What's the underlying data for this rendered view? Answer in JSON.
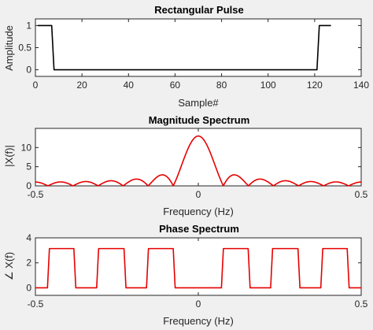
{
  "chart_data": [
    {
      "type": "line",
      "title": "Rectangular Pulse",
      "xlabel": "Sample#",
      "ylabel": "Amplitude",
      "xlim": [
        0,
        140
      ],
      "ylim": [
        -0.15,
        1.15
      ],
      "xticks": [
        "0",
        "20",
        "40",
        "60",
        "80",
        "100",
        "120",
        "140"
      ],
      "yticks": [
        "0",
        "0.5",
        "1"
      ],
      "series": [
        {
          "color": "#000000",
          "x": [
            1,
            7,
            8,
            121,
            122,
            127
          ],
          "y": [
            1,
            1,
            0,
            0,
            1,
            1
          ]
        }
      ]
    },
    {
      "type": "line",
      "title": "Magnitude Spectrum",
      "xlabel": "Frequency (Hz)",
      "ylabel": "|X(f)|",
      "xlim": [
        -0.5,
        0.5
      ],
      "ylim": [
        0,
        15
      ],
      "xticks": [
        "-0.5",
        "0",
        "0.5"
      ],
      "yticks": [
        "0",
        "5",
        "10"
      ],
      "series": [
        {
          "color": "#e60000",
          "formula": "abs(sin(pi*13*f)/sin(pi*f))",
          "peak": 13,
          "zeros_spacing_hz": 0.0769
        }
      ]
    },
    {
      "type": "line",
      "title": "Phase Spectrum",
      "xlabel": "Frequency (Hz)",
      "ylabel": "∠ X(f)",
      "xlim": [
        -0.5,
        0.5
      ],
      "ylim": [
        -0.6,
        4
      ],
      "xticks": [
        "-0.5",
        "0",
        "0.5"
      ],
      "yticks": [
        "0",
        "2",
        "4"
      ],
      "series": [
        {
          "color": "#e60000",
          "levels": [
            0,
            3.14159
          ],
          "high_intervals": [
            [
              -0.457,
              -0.382
            ],
            [
              -0.306,
              -0.228
            ],
            [
              -0.153,
              -0.077
            ],
            [
              0.077,
              0.153
            ],
            [
              0.228,
              0.306
            ],
            [
              0.382,
              0.457
            ]
          ]
        }
      ]
    }
  ]
}
